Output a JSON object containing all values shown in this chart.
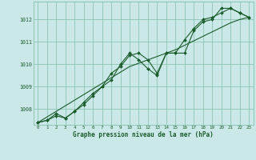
{
  "xlabel": "Graphe pression niveau de la mer (hPa)",
  "background_color": "#cbe8e8",
  "plot_bg_color": "#cbe8e8",
  "line_color": "#1a5c2a",
  "marker_color": "#1a5c2a",
  "grid_color": "#7ab8a0",
  "x_values": [
    0,
    1,
    2,
    3,
    4,
    5,
    6,
    7,
    8,
    9,
    10,
    11,
    12,
    13,
    14,
    15,
    16,
    17,
    18,
    19,
    20,
    21,
    22,
    23
  ],
  "y_line1": [
    1007.4,
    1007.5,
    1007.7,
    1007.6,
    1007.9,
    1008.2,
    1008.6,
    1009.0,
    1009.3,
    1010.0,
    1010.5,
    1010.2,
    1009.8,
    1009.5,
    1010.5,
    1010.5,
    1011.1,
    1011.6,
    1012.0,
    1012.1,
    1012.3,
    1012.5,
    1012.3,
    1012.1
  ],
  "y_line2": [
    1007.4,
    1007.5,
    1007.8,
    1007.6,
    1007.9,
    1008.3,
    1008.7,
    1009.0,
    1009.6,
    1009.9,
    1010.4,
    1010.5,
    1010.2,
    1009.6,
    1010.5,
    1010.5,
    1010.5,
    1011.5,
    1011.9,
    1012.0,
    1012.5,
    1012.5,
    1012.3,
    1012.1
  ],
  "y_linear": [
    1007.4,
    1007.65,
    1007.9,
    1008.15,
    1008.4,
    1008.65,
    1008.9,
    1009.15,
    1009.4,
    1009.65,
    1009.9,
    1010.05,
    1010.2,
    1010.35,
    1010.5,
    1010.65,
    1010.85,
    1011.05,
    1011.25,
    1011.45,
    1011.65,
    1011.85,
    1012.0,
    1012.1
  ],
  "ylim": [
    1007.3,
    1012.8
  ],
  "xlim": [
    -0.5,
    23.5
  ],
  "yticks": [
    1008,
    1009,
    1010,
    1011,
    1012
  ],
  "xticks": [
    0,
    1,
    2,
    3,
    4,
    5,
    6,
    7,
    8,
    9,
    10,
    11,
    12,
    13,
    14,
    15,
    16,
    17,
    18,
    19,
    20,
    21,
    22,
    23
  ],
  "font_color": "#1a5c2a"
}
